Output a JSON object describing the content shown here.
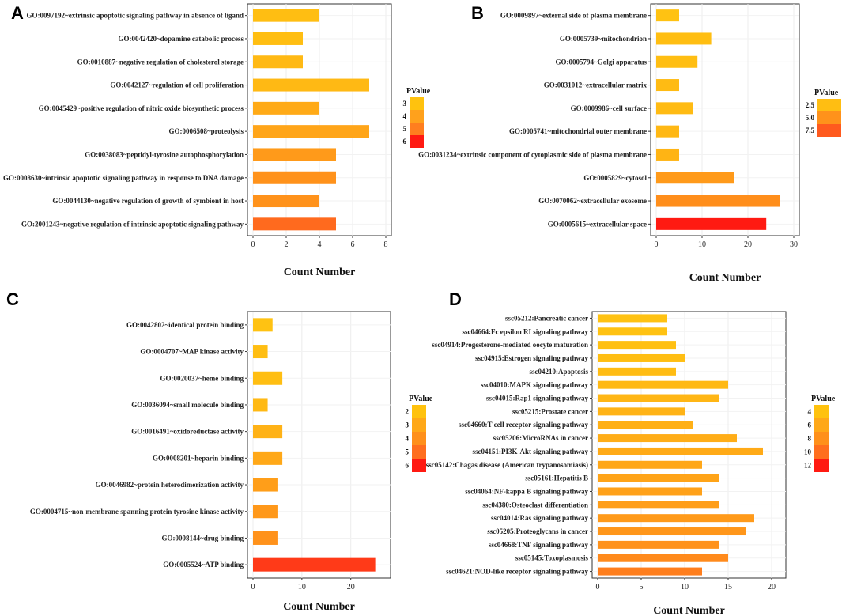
{
  "figure": {
    "chart_data": [
      {
        "panel": "A",
        "type": "bar",
        "orientation": "horizontal",
        "xlabel": "Count Number",
        "xlim": [
          0,
          8
        ],
        "xticks": [
          0,
          2,
          4,
          6,
          8
        ],
        "legend": {
          "title": "PValue",
          "entries": [
            "3",
            "4",
            "5",
            "6"
          ],
          "colors": [
            "#FFC20E",
            "#FFA11C",
            "#FF7E1F",
            "#FF1A12"
          ]
        },
        "categories": [
          "GO:0097192~extrinsic apoptotic signaling pathway in absence of ligand",
          "GO:0042420~dopamine catabolic process",
          "GO:0010887~negative regulation of cholesterol storage",
          "GO:0042127~regulation of cell proliferation",
          "GO:0045429~positive regulation of nitric oxide biosynthetic process",
          "GO:0006508~proteolysis",
          "GO:0038083~peptidyl-tyrosine autophosphorylation",
          "GO:0008630~intrinsic apoptotic signaling pathway in response to DNA damage",
          "GO:0044130~negative regulation of growth of symbiont in host",
          "GO:2001243~negative regulation of intrinsic apoptotic signaling pathway"
        ],
        "values": [
          4,
          3,
          3,
          7,
          4,
          7,
          5,
          5,
          4,
          5
        ],
        "colors": [
          "#FFBE12",
          "#FFBE12",
          "#FFB914",
          "#FFB914",
          "#FFAA17",
          "#FFA519",
          "#FF9A1A",
          "#FF921B",
          "#FF921B",
          "#FF6A1E"
        ]
      },
      {
        "panel": "B",
        "type": "bar",
        "orientation": "horizontal",
        "xlabel": "Count Number",
        "xlim": [
          0,
          30
        ],
        "xticks": [
          0,
          10,
          20,
          30
        ],
        "legend": {
          "title": "PValue",
          "entries": [
            "2.5",
            "5.0",
            "7.5"
          ],
          "colors": [
            "#FFBE12",
            "#FF921B",
            "#FF5A1E"
          ]
        },
        "categories": [
          "GO:0009897~external side of plasma membrane",
          "GO:0005739~mitochondrion",
          "GO:0005794~Golgi apparatus",
          "GO:0031012~extracellular matrix",
          "GO:0009986~cell surface",
          "GO:0005741~mitochondrial outer membrane",
          "GO:0031234~extrinsic component of cytoplasmic side of plasma membrane",
          "GO:0005829~cytosol",
          "GO:0070062~extracellular exosome",
          "GO:0005615~extracellular space"
        ],
        "values": [
          5,
          12,
          9,
          5,
          8,
          5,
          5,
          17,
          27,
          24
        ],
        "colors": [
          "#FFC212",
          "#FFBE12",
          "#FFBE12",
          "#FFBB13",
          "#FFBB13",
          "#FFB814",
          "#FFB414",
          "#FF9A1A",
          "#FF8E1B",
          "#FF1A12"
        ]
      },
      {
        "panel": "C",
        "type": "bar",
        "orientation": "horizontal",
        "xlabel": "Count Number",
        "xlim": [
          0,
          27
        ],
        "xticks": [
          0,
          10,
          20
        ],
        "legend": {
          "title": "PValue",
          "entries": [
            "2",
            "3",
            "4",
            "5",
            "6"
          ],
          "colors": [
            "#FFC20E",
            "#FFA818",
            "#FF901B",
            "#FF6E1E",
            "#FF1A12"
          ]
        },
        "categories": [
          "GO:0042802~identical protein binding",
          "GO:0004707~MAP kinase activity",
          "GO:0020037~heme binding",
          "GO:0036094~small molecule binding",
          "GO:0016491~oxidoreductase activity",
          "GO:0008201~heparin binding",
          "GO:0046982~protein heterodimerization activity",
          "GO:0004715~non-membrane spanning protein tyrosine kinase activity",
          "GO:0008144~drug binding",
          "GO:0005524~ATP binding"
        ],
        "values": [
          4,
          3,
          6,
          3,
          6,
          6,
          5,
          5,
          5,
          25
        ],
        "colors": [
          "#FFC212",
          "#FFBE12",
          "#FFBE12",
          "#FFB914",
          "#FFB216",
          "#FFA818",
          "#FF9E19",
          "#FF981A",
          "#FF921B",
          "#FF3A18"
        ]
      },
      {
        "panel": "D",
        "type": "bar",
        "orientation": "horizontal",
        "xlabel": "Count Number",
        "xlim": [
          0,
          21
        ],
        "xticks": [
          0,
          5,
          10,
          15,
          20
        ],
        "legend": {
          "title": "PValue",
          "entries": [
            "4",
            "6",
            "8",
            "10",
            "12"
          ],
          "colors": [
            "#FFC20E",
            "#FFA818",
            "#FF901B",
            "#FF6E1E",
            "#FF1A12"
          ]
        },
        "categories": [
          "ssc05212:Pancreatic cancer",
          "ssc04664:Fc epsilon RI signaling pathway",
          "ssc04914:Progesterone-mediated oocyte maturation",
          "ssc04915:Estrogen signaling pathway",
          "ssc04210:Apoptosis",
          "ssc04010:MAPK signaling pathway",
          "ssc04015:Rap1 signaling pathway",
          "ssc05215:Prostate cancer",
          "ssc04660:T cell receptor signaling pathway",
          "ssc05206:MicroRNAs in cancer",
          "ssc04151:PI3K-Akt signaling pathway",
          "ssc05142:Chagas disease (American trypanosomiasis)",
          "ssc05161:Hepatitis B",
          "ssc04064:NF-kappa B signaling pathway",
          "ssc04380:Osteoclast differentiation",
          "ssc04014:Ras signaling pathway",
          "ssc05205:Proteoglycans in cancer",
          "ssc04668:TNF signaling pathway",
          "ssc05145:Toxoplasmosis",
          "ssc04621:NOD-like receptor signaling pathway"
        ],
        "values": [
          8,
          8,
          9,
          10,
          9,
          15,
          14,
          10,
          11,
          16,
          19,
          12,
          14,
          12,
          14,
          18,
          17,
          14,
          15,
          12
        ],
        "colors": [
          "#FFC212",
          "#FFC212",
          "#FFC012",
          "#FFBE12",
          "#FFBC13",
          "#FFB914",
          "#FFB615",
          "#FFB316",
          "#FFB016",
          "#FFAD17",
          "#FFAA17",
          "#FFA718",
          "#FFA418",
          "#FFA119",
          "#FF9E19",
          "#FF9A1A",
          "#FF961A",
          "#FF921B",
          "#FF8A1C",
          "#FF7E1D"
        ]
      }
    ]
  }
}
